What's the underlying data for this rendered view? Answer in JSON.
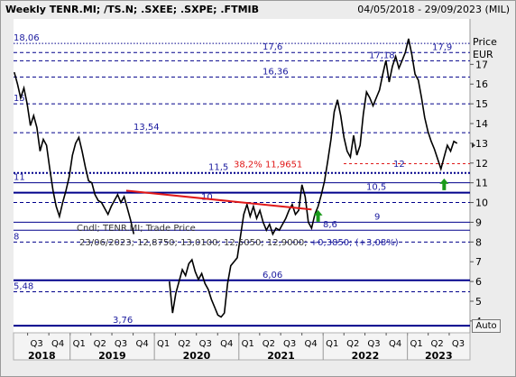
{
  "header": {
    "title": "Weekly TENR.MI; /TS.N; .SXEE; .SXPE; .FTMIB",
    "date_range": "04/05/2018 - 29/09/2023 (MIL)"
  },
  "axis": {
    "price_label": "Price",
    "currency_label": "EUR",
    "auto_label": "Auto"
  },
  "tooltip": {
    "line1": "Cndl; TENR.MI; Trade Price",
    "line2_prefix": "23/06/2023; 12,8750; 13,0100; 12,5050; 12,9000;",
    "line2_change": "+0,3850; (+3,08%)"
  },
  "colors": {
    "background": "#ececec",
    "plot_background": "#ffffff",
    "price_series": "#000000",
    "level_lines": "#00008b",
    "level_text": "#1a1a9e",
    "trendline": "#e01818",
    "fibonacci_text": "#e01818",
    "arrow_up": "#1a9a1a"
  },
  "chart_data": {
    "type": "line",
    "series": [
      {
        "points": [
          [
            "2018-05-04",
            16.6
          ],
          [
            "2018-05-18",
            16.0
          ],
          [
            "2018-06-01",
            15.3
          ],
          [
            "2018-06-15",
            15.8
          ],
          [
            "2018-06-29",
            15.0
          ],
          [
            "2018-07-13",
            13.9
          ],
          [
            "2018-07-27",
            14.4
          ],
          [
            "2018-08-10",
            13.8
          ],
          [
            "2018-08-24",
            12.6
          ],
          [
            "2018-09-07",
            13.2
          ],
          [
            "2018-09-21",
            12.9
          ],
          [
            "2018-10-05",
            11.7
          ],
          [
            "2018-10-19",
            10.6
          ],
          [
            "2018-11-02",
            9.8
          ],
          [
            "2018-11-16",
            9.3
          ],
          [
            "2018-11-30",
            10.0
          ],
          [
            "2018-12-14",
            10.6
          ],
          [
            "2018-12-28",
            11.3
          ],
          [
            "2019-01-11",
            12.4
          ],
          [
            "2019-01-25",
            13.0
          ],
          [
            "2019-02-08",
            13.3
          ],
          [
            "2019-02-22",
            12.6
          ],
          [
            "2019-03-08",
            11.8
          ],
          [
            "2019-03-22",
            11.1
          ],
          [
            "2019-04-05",
            11.0
          ],
          [
            "2019-04-19",
            10.4
          ],
          [
            "2019-05-03",
            10.1
          ],
          [
            "2019-05-17",
            10.0
          ],
          [
            "2019-05-31",
            9.7
          ],
          [
            "2019-06-14",
            9.4
          ],
          [
            "2019-06-28",
            9.8
          ],
          [
            "2019-07-12",
            10.1
          ],
          [
            "2019-07-26",
            10.4
          ],
          [
            "2019-08-09",
            10.0
          ],
          [
            "2019-08-23",
            10.3
          ],
          [
            "2019-09-06",
            9.7
          ],
          [
            "2019-09-20",
            9.1
          ],
          [
            "2019-10-04",
            8.4
          ],
          [
            "2020-03-06",
            6.0
          ],
          [
            "2020-03-20",
            4.4
          ],
          [
            "2020-04-03",
            5.4
          ],
          [
            "2020-04-17",
            6.0
          ],
          [
            "2020-05-01",
            6.6
          ],
          [
            "2020-05-15",
            6.3
          ],
          [
            "2020-05-29",
            6.9
          ],
          [
            "2020-06-12",
            7.1
          ],
          [
            "2020-06-26",
            6.5
          ],
          [
            "2020-07-10",
            6.1
          ],
          [
            "2020-07-24",
            6.4
          ],
          [
            "2020-08-07",
            5.9
          ],
          [
            "2020-08-21",
            5.6
          ],
          [
            "2020-09-04",
            5.1
          ],
          [
            "2020-09-18",
            4.7
          ],
          [
            "2020-10-02",
            4.3
          ],
          [
            "2020-10-16",
            4.2
          ],
          [
            "2020-10-30",
            4.4
          ],
          [
            "2020-11-13",
            5.9
          ],
          [
            "2020-11-27",
            6.8
          ],
          [
            "2020-12-11",
            7.0
          ],
          [
            "2020-12-25",
            7.2
          ],
          [
            "2021-01-08",
            8.3
          ],
          [
            "2021-01-22",
            9.4
          ],
          [
            "2021-02-05",
            9.9
          ],
          [
            "2021-02-19",
            9.3
          ],
          [
            "2021-03-05",
            9.8
          ],
          [
            "2021-03-19",
            9.2
          ],
          [
            "2021-04-02",
            9.6
          ],
          [
            "2021-04-16",
            9.0
          ],
          [
            "2021-04-30",
            8.6
          ],
          [
            "2021-05-14",
            8.9
          ],
          [
            "2021-05-28",
            8.4
          ],
          [
            "2021-06-11",
            8.7
          ],
          [
            "2021-06-25",
            8.6
          ],
          [
            "2021-07-09",
            8.9
          ],
          [
            "2021-07-23",
            9.2
          ],
          [
            "2021-08-06",
            9.6
          ],
          [
            "2021-08-20",
            9.9
          ],
          [
            "2021-09-03",
            9.4
          ],
          [
            "2021-09-17",
            9.6
          ],
          [
            "2021-10-01",
            10.9
          ],
          [
            "2021-10-15",
            10.3
          ],
          [
            "2021-10-29",
            9.0
          ],
          [
            "2021-11-12",
            8.7
          ],
          [
            "2021-11-26",
            9.4
          ],
          [
            "2021-12-10",
            9.8
          ],
          [
            "2021-12-24",
            10.4
          ],
          [
            "2022-01-07",
            11.1
          ],
          [
            "2022-01-21",
            12.1
          ],
          [
            "2022-02-04",
            13.2
          ],
          [
            "2022-02-18",
            14.6
          ],
          [
            "2022-03-04",
            15.2
          ],
          [
            "2022-03-18",
            14.4
          ],
          [
            "2022-04-01",
            13.3
          ],
          [
            "2022-04-15",
            12.6
          ],
          [
            "2022-04-29",
            12.3
          ],
          [
            "2022-05-13",
            13.4
          ],
          [
            "2022-05-27",
            12.4
          ],
          [
            "2022-06-10",
            12.9
          ],
          [
            "2022-06-24",
            14.5
          ],
          [
            "2022-07-08",
            15.6
          ],
          [
            "2022-07-22",
            15.3
          ],
          [
            "2022-08-05",
            14.9
          ],
          [
            "2022-08-19",
            15.3
          ],
          [
            "2022-09-02",
            15.7
          ],
          [
            "2022-09-16",
            16.5
          ],
          [
            "2022-09-30",
            17.2
          ],
          [
            "2022-10-14",
            16.1
          ],
          [
            "2022-10-28",
            16.9
          ],
          [
            "2022-11-11",
            17.4
          ],
          [
            "2022-11-25",
            16.8
          ],
          [
            "2022-12-09",
            17.2
          ],
          [
            "2022-12-23",
            17.6
          ],
          [
            "2023-01-06",
            18.3
          ],
          [
            "2023-01-20",
            17.5
          ],
          [
            "2023-02-03",
            16.5
          ],
          [
            "2023-02-17",
            16.2
          ],
          [
            "2023-03-03",
            15.3
          ],
          [
            "2023-03-17",
            14.3
          ],
          [
            "2023-03-31",
            13.6
          ],
          [
            "2023-04-14",
            13.1
          ],
          [
            "2023-04-28",
            12.7
          ],
          [
            "2023-05-12",
            12.2
          ],
          [
            "2023-05-26",
            11.7
          ],
          [
            "2023-06-09",
            12.3
          ],
          [
            "2023-06-23",
            12.9
          ],
          [
            "2023-07-07",
            12.6
          ],
          [
            "2023-07-21",
            13.1
          ],
          [
            "2023-08-04",
            13.0
          ]
        ]
      }
    ],
    "levels": [
      {
        "value": 18.06,
        "label": "18,06",
        "style": "dotted"
      },
      {
        "value": 17.6,
        "label": "17,6",
        "style": "dashed"
      },
      {
        "value": 17.18,
        "label": "17,18",
        "style": "dashed"
      },
      {
        "value": 16.36,
        "label": "16,36",
        "style": "dashed"
      },
      {
        "value": 15.0,
        "label": "15",
        "style": "dashed"
      },
      {
        "value": 13.54,
        "label": "13,54",
        "style": "dashed"
      },
      {
        "value": 11.5,
        "label": "11,5",
        "style": "dotted-bold"
      },
      {
        "value": 11.0,
        "label": "11",
        "style": "solid"
      },
      {
        "value": 10.5,
        "label": "10,5",
        "style": "solid-bold"
      },
      {
        "value": 10.0,
        "label": "10",
        "style": "dashed"
      },
      {
        "value": 9.0,
        "label": "9",
        "style": "solid"
      },
      {
        "value": 8.6,
        "label": "8,6",
        "style": "solid"
      },
      {
        "value": 8.0,
        "label": "8",
        "style": "dashed"
      },
      {
        "value": 6.06,
        "label": "6,06",
        "style": "solid-bold"
      },
      {
        "value": 5.48,
        "label": "5,48",
        "style": "dashed"
      },
      {
        "value": 3.76,
        "label": "3,76",
        "style": "solid-bold"
      }
    ],
    "fibonacci": {
      "value": 11.9651,
      "label": "38,2% 11,9651"
    },
    "extra_labels": [
      {
        "value": 12.0,
        "label": "12"
      },
      {
        "value": 17.9,
        "label": "17,9"
      }
    ],
    "trendline": {
      "from": [
        "2019-09-01",
        10.6
      ],
      "to": [
        "2021-11-12",
        9.65
      ]
    },
    "arrows": [
      {
        "date": "2021-12-10",
        "value": 9.8
      },
      {
        "date": "2023-06-09",
        "value": 11.4
      }
    ],
    "current_value": 12.9,
    "y_ticks": [
      "17",
      "16",
      "15",
      "14",
      "13",
      "12",
      "11",
      "10",
      "9",
      "8",
      "7",
      "6",
      "5",
      "4"
    ],
    "y_range": [
      3.4,
      19.3
    ],
    "x_quarters": [
      {
        "date": "2018-07-01",
        "label": "Q3"
      },
      {
        "date": "2018-10-01",
        "label": "Q4"
      },
      {
        "date": "2019-01-01",
        "label": "Q1"
      },
      {
        "date": "2019-04-01",
        "label": "Q2"
      },
      {
        "date": "2019-07-01",
        "label": "Q3"
      },
      {
        "date": "2019-10-01",
        "label": "Q4"
      },
      {
        "date": "2020-01-01",
        "label": "Q1"
      },
      {
        "date": "2020-04-01",
        "label": "Q2"
      },
      {
        "date": "2020-07-01",
        "label": "Q3"
      },
      {
        "date": "2020-10-01",
        "label": "Q4"
      },
      {
        "date": "2021-01-01",
        "label": "Q1"
      },
      {
        "date": "2021-04-01",
        "label": "Q2"
      },
      {
        "date": "2021-07-01",
        "label": "Q3"
      },
      {
        "date": "2021-10-01",
        "label": "Q4"
      },
      {
        "date": "2022-01-01",
        "label": "Q1"
      },
      {
        "date": "2022-04-01",
        "label": "Q2"
      },
      {
        "date": "2022-07-01",
        "label": "Q3"
      },
      {
        "date": "2022-10-01",
        "label": "Q4"
      },
      {
        "date": "2023-01-01",
        "label": "Q1"
      },
      {
        "date": "2023-04-01",
        "label": "Q2"
      },
      {
        "date": "2023-07-01",
        "label": "Q3"
      }
    ],
    "x_years": [
      "2018",
      "2019",
      "2020",
      "2021",
      "2022",
      "2023"
    ],
    "x_range": [
      "2018-05-01",
      "2023-09-29"
    ]
  }
}
